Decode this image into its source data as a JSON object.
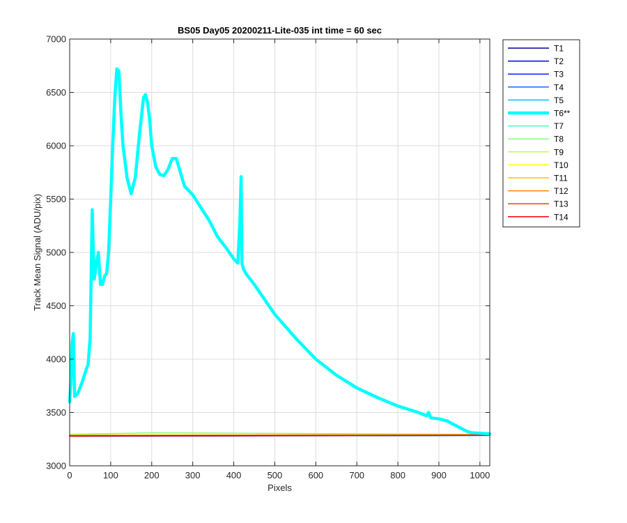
{
  "chart_data": {
    "type": "line",
    "title": "BS05 Day05 20200211-Lite-035 int time = 60 sec",
    "xlabel": "Pixels",
    "ylabel": "Track Mean Signal (ADU/pix)",
    "xlim": [
      0,
      1024
    ],
    "ylim": [
      3000,
      7000
    ],
    "xticks": [
      0,
      100,
      200,
      300,
      400,
      500,
      600,
      700,
      800,
      900,
      1000
    ],
    "yticks": [
      3000,
      3500,
      4000,
      4500,
      5000,
      5500,
      6000,
      6500,
      7000
    ],
    "grid": true,
    "legend_position": "outside-right",
    "highlight_series": "T6**",
    "series": [
      {
        "name": "T1",
        "color": "#00008f",
        "x": [
          0,
          1024
        ],
        "y": [
          3278,
          3285
        ]
      },
      {
        "name": "T2",
        "color": "#0000d0",
        "x": [
          0,
          1024
        ],
        "y": [
          3279,
          3286
        ]
      },
      {
        "name": "T3",
        "color": "#0022ff",
        "x": [
          0,
          1024
        ],
        "y": [
          3280,
          3287
        ]
      },
      {
        "name": "T4",
        "color": "#0070ff",
        "x": [
          0,
          1024
        ],
        "y": [
          3282,
          3288
        ]
      },
      {
        "name": "T5",
        "color": "#00bfff",
        "x": [
          0,
          1024
        ],
        "y": [
          3284,
          3290
        ]
      },
      {
        "name": "T6**",
        "color": "#00ffff",
        "x": [
          0,
          3,
          6,
          9,
          12,
          15,
          20,
          30,
          40,
          45,
          50,
          55,
          57,
          60,
          65,
          70,
          75,
          80,
          85,
          90,
          95,
          100,
          105,
          110,
          115,
          120,
          125,
          130,
          140,
          150,
          160,
          170,
          180,
          185,
          190,
          195,
          200,
          210,
          220,
          230,
          240,
          250,
          260,
          270,
          280,
          300,
          320,
          340,
          360,
          380,
          400,
          410,
          415,
          418,
          420,
          423,
          430,
          450,
          500,
          550,
          600,
          650,
          700,
          750,
          800,
          850,
          870,
          875,
          880,
          900,
          920,
          940,
          960,
          970,
          980,
          1000,
          1024
        ],
        "y": [
          3600,
          3800,
          4150,
          4240,
          3650,
          3660,
          3680,
          3780,
          3900,
          3950,
          4200,
          5400,
          5100,
          4750,
          4900,
          5000,
          4700,
          4700,
          4780,
          4800,
          5000,
          5500,
          6000,
          6450,
          6720,
          6700,
          6300,
          6000,
          5700,
          5550,
          5700,
          6100,
          6450,
          6480,
          6400,
          6250,
          6000,
          5800,
          5730,
          5720,
          5780,
          5880,
          5880,
          5750,
          5620,
          5540,
          5420,
          5300,
          5150,
          5050,
          4940,
          4900,
          5300,
          5710,
          4900,
          4850,
          4800,
          4700,
          4420,
          4200,
          4000,
          3850,
          3730,
          3640,
          3560,
          3500,
          3470,
          3500,
          3450,
          3440,
          3420,
          3380,
          3340,
          3320,
          3310,
          3305,
          3300
        ]
      },
      {
        "name": "T7",
        "color": "#40ffbf",
        "x": [
          0,
          1024
        ],
        "y": [
          3287,
          3292
        ]
      },
      {
        "name": "T8",
        "color": "#80ff80",
        "x": [
          0,
          200,
          1024
        ],
        "y": [
          3295,
          3310,
          3295
        ]
      },
      {
        "name": "T9",
        "color": "#bfff40",
        "x": [
          0,
          1024
        ],
        "y": [
          3289,
          3292
        ]
      },
      {
        "name": "T10",
        "color": "#ffff00",
        "x": [
          0,
          1024
        ],
        "y": [
          3288,
          3291
        ]
      },
      {
        "name": "T11",
        "color": "#ffbf00",
        "x": [
          0,
          1024
        ],
        "y": [
          3286,
          3290
        ]
      },
      {
        "name": "T12",
        "color": "#ff8000",
        "x": [
          0,
          1024
        ],
        "y": [
          3284,
          3289
        ]
      },
      {
        "name": "T13",
        "color": "#ff4000",
        "x": [
          0,
          1024
        ],
        "y": [
          3282,
          3288
        ]
      },
      {
        "name": "T14",
        "color": "#ff0000",
        "x": [
          0,
          1024
        ],
        "y": [
          3280,
          3287
        ]
      }
    ]
  }
}
